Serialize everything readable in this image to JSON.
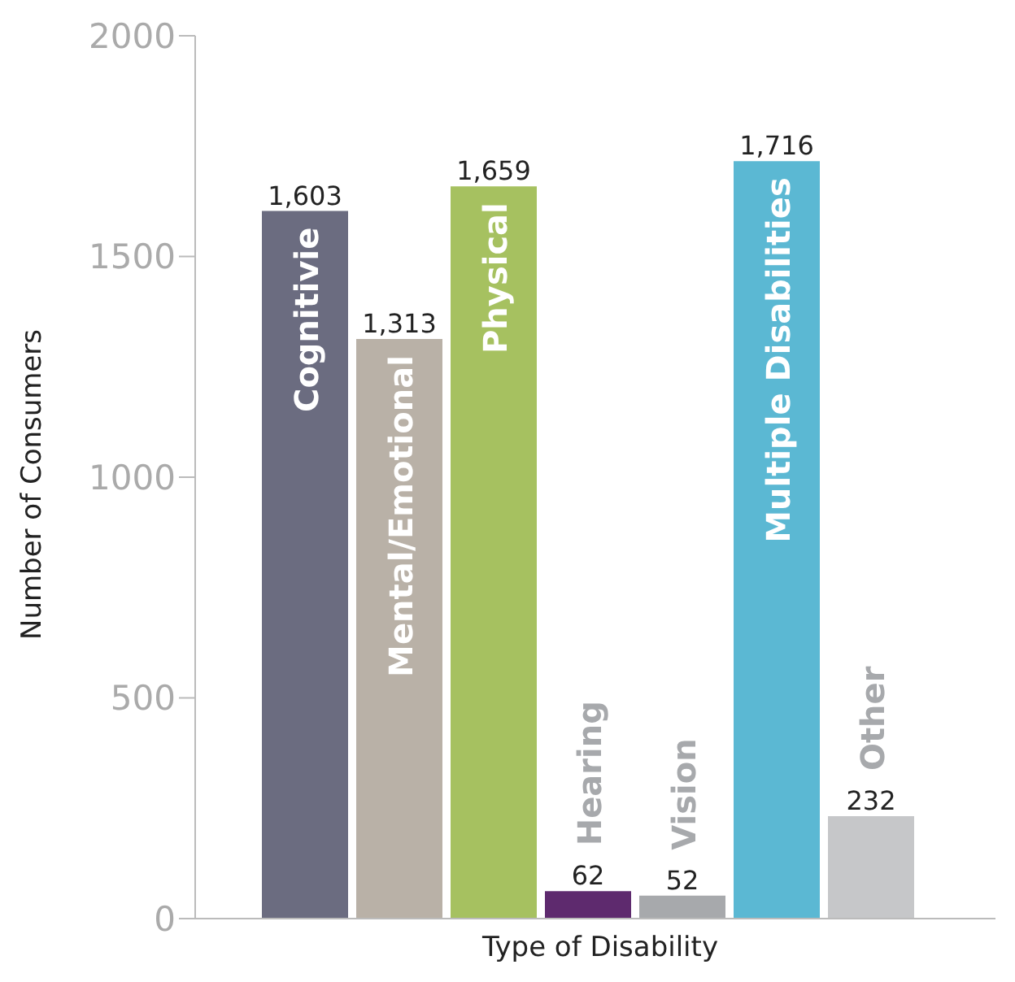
{
  "chart_data": {
    "type": "bar",
    "xlabel": "Type of Disability",
    "ylabel": "Number of Consumers",
    "categories": [
      "Cognitivie",
      "Mental/Emotional",
      "Physical",
      "Hearing",
      "Vision",
      "Multiple Disabilities",
      "Other"
    ],
    "values": [
      1603,
      1313,
      1659,
      62,
      52,
      1716,
      232
    ],
    "value_labels": [
      "1,603",
      "1,313",
      "1,659",
      "62",
      "52",
      "1,716",
      "232"
    ],
    "colors": [
      "#6b6c80",
      "#b9b1a7",
      "#a6c160",
      "#5e2a6e",
      "#a7a9ac",
      "#5bb8d3",
      "#c6c7c9"
    ],
    "ylim": [
      0,
      2000
    ],
    "yticks": [
      0,
      500,
      1000,
      1500,
      2000
    ],
    "tick_labels": "y",
    "grid": false
  }
}
